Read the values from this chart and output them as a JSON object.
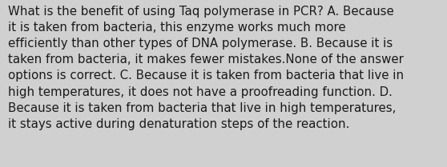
{
  "background_color": "#d0d0d0",
  "text_color": "#1a1a1a",
  "font_size": 10.8,
  "font_family": "DejaVu Sans",
  "text": "What is the benefit of using Taq polymerase in PCR? A. Because\nit is taken from bacteria, this enzyme works much more\nefficiently than other types of DNA polymerase. B. Because it is\ntaken from bacteria, it makes fewer mistakes.None of the answer\noptions is correct. C. Because it is taken from bacteria that live in\nhigh temperatures, it does not have a proofreading function. D.\nBecause it is taken from bacteria that live in high temperatures,\nit stays active during denaturation steps of the reaction."
}
